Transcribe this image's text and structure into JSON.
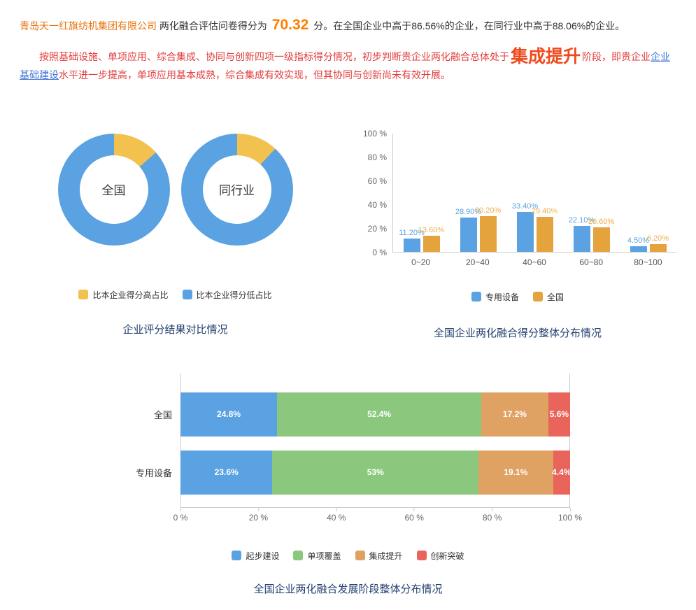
{
  "header": {
    "line1": {
      "company": "青岛天一红旗纺机集团有限公司",
      "mid": " 两化融合评估问卷得分为 ",
      "score": "70.32",
      "tail": " 分。在全国企业中高于86.56%的企业，在同行业中高于88.06%的企业。"
    },
    "line2": {
      "part1": "按照基础设施、单项应用、综合集成、协同与创新四项一级指标得分情况，初步判断贵企业两化融合总体处于",
      "stage": "集成提升",
      "part2": "阶段，即贵企业",
      "link": "企业基础建设",
      "part3": "水平进一步提高，单项应用基本成熟，综合集成有效实现，但其协同与创新尚未有效开展。"
    }
  },
  "chart_data": [
    {
      "type": "pie",
      "variant": "donut-pair",
      "title": "企业评分结果对比情况",
      "legend": [
        {
          "label": "比本企业得分高占比",
          "color": "#f2c14e"
        },
        {
          "label": "比本企业得分低占比",
          "color": "#5ba2e2"
        }
      ],
      "donuts": [
        {
          "label": "全国",
          "slices": [
            {
              "name": "比本企业得分高占比",
              "value": 13.44
            },
            {
              "name": "比本企业得分低占比",
              "value": 86.56
            }
          ]
        },
        {
          "label": "同行业",
          "slices": [
            {
              "name": "比本企业得分高占比",
              "value": 11.94
            },
            {
              "name": "比本企业得分低占比",
              "value": 88.06
            }
          ]
        }
      ]
    },
    {
      "type": "bar",
      "title": "全国企业两化融合得分整体分布情况",
      "categories": [
        "0~20",
        "20~40",
        "40~60",
        "60~80",
        "80~100"
      ],
      "series": [
        {
          "name": "专用设备",
          "color": "#5ba2e2",
          "label_color": "#5ba2e2",
          "values": [
            11.2,
            28.9,
            33.4,
            22.1,
            4.5
          ],
          "labels": [
            "11.20%",
            "28.90%",
            "33.40%",
            "22.10%",
            "4.50%"
          ]
        },
        {
          "name": "全国",
          "color": "#e5a33d",
          "label_color": "#eeb04d",
          "values": [
            13.6,
            30.2,
            29.4,
            20.6,
            6.2
          ],
          "labels": [
            "13.60%",
            "30.20%",
            "29.40%",
            "20.60%",
            "6.20%"
          ]
        }
      ],
      "y_ticks": [
        "0 %",
        "20 %",
        "40 %",
        "60 %",
        "80 %",
        "100 %"
      ],
      "ylim": [
        0,
        100
      ],
      "grid": false,
      "legend_position": "bottom"
    },
    {
      "type": "bar",
      "variant": "stacked-horizontal",
      "title": "全国企业两化融合发展阶段整体分布情况",
      "categories": [
        "全国",
        "专用设备"
      ],
      "series": [
        {
          "name": "起步建设",
          "color": "#5ba2e2",
          "values": [
            24.8,
            23.6
          ],
          "labels": [
            "24.8%",
            "23.6%"
          ]
        },
        {
          "name": "单项覆盖",
          "color": "#8bc87d",
          "values": [
            52.4,
            53
          ],
          "labels": [
            "52.4%",
            "53%"
          ]
        },
        {
          "name": "集成提升",
          "color": "#dfa263",
          "values": [
            17.2,
            19.1
          ],
          "labels": [
            "17.2%",
            "19.1%"
          ]
        },
        {
          "name": "创新突破",
          "color": "#e9655b",
          "values": [
            5.6,
            4.4
          ],
          "labels": [
            "5.6%",
            "4.4%"
          ]
        }
      ],
      "x_ticks": [
        "0 %",
        "20 %",
        "40 %",
        "60 %",
        "80 %",
        "100 %"
      ],
      "xlim": [
        0,
        100
      ],
      "grid": false,
      "legend_position": "bottom"
    }
  ]
}
